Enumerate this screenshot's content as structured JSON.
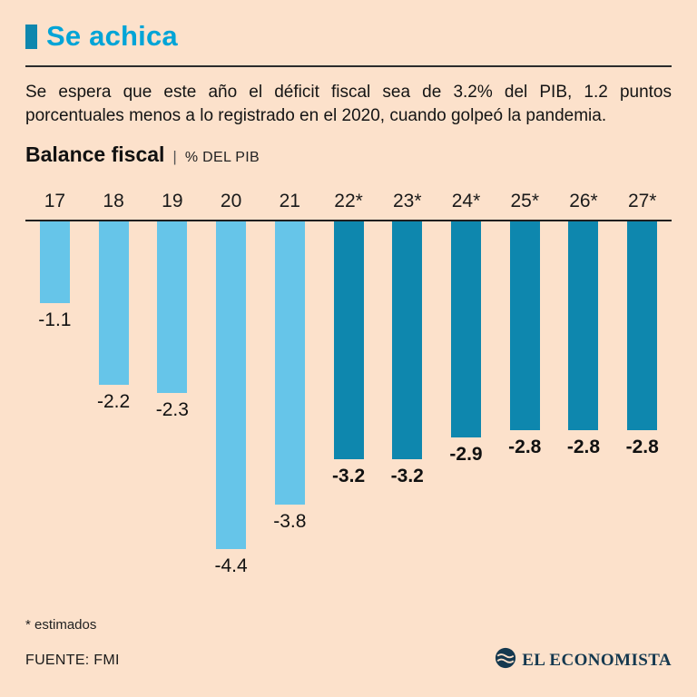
{
  "header": {
    "title": "Se achica"
  },
  "intro": "Se espera que este año el déficit fiscal sea de 3.2% del PIB, 1.2 puntos porcentuales menos a lo registrado en el 2020, cuando golpeó la pandemia.",
  "chart_header": {
    "title": "Balance fiscal",
    "separator": "|",
    "unit": "% DEL PIB"
  },
  "chart_data": {
    "type": "bar",
    "title": "Balance fiscal",
    "ylabel": "% DEL PIB",
    "categories": [
      "17",
      "18",
      "19",
      "20",
      "21",
      "22*",
      "23*",
      "24*",
      "25*",
      "26*",
      "27*"
    ],
    "values": [
      -1.1,
      -2.2,
      -2.3,
      -4.4,
      -3.8,
      -3.2,
      -3.2,
      -2.9,
      -2.8,
      -2.8,
      -2.8
    ],
    "labels": [
      "-1.1",
      "-2.2",
      "-2.3",
      "-4.4",
      "-3.8",
      "-3.2",
      "-3.2",
      "-2.9",
      "-2.8",
      "-2.8",
      "-2.8"
    ],
    "estimated": [
      false,
      false,
      false,
      false,
      false,
      true,
      true,
      true,
      true,
      true,
      true
    ],
    "ylim": [
      -4.4,
      0
    ],
    "grid": false,
    "legend": "none",
    "colors": {
      "historical": "#66c5e9",
      "estimated": "#0e87ae"
    }
  },
  "footnote": "* estimados",
  "source": "FUENTE: FMI",
  "logo": {
    "text": "EL ECONOMISTA"
  },
  "colors": {
    "background": "#fce1cb",
    "accent": "#00a4d7",
    "accent_dark": "#0e87ae",
    "logo": "#14384f"
  }
}
